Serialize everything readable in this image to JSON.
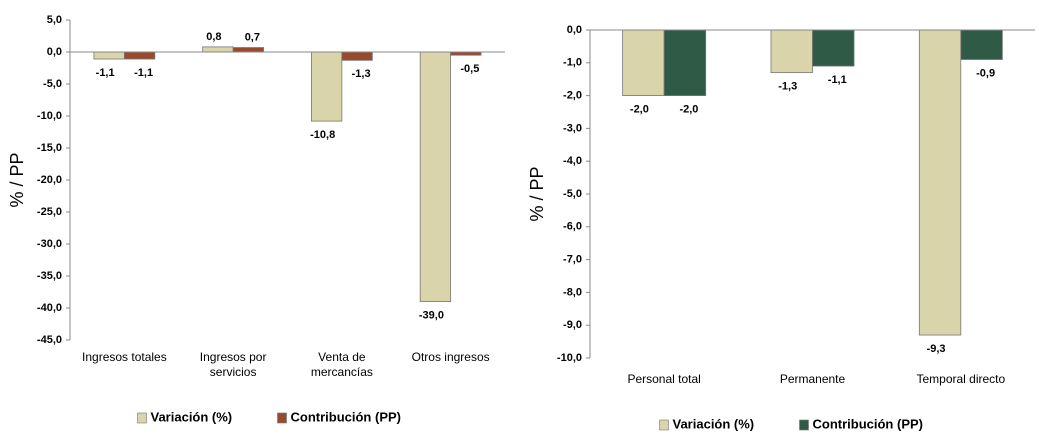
{
  "chart_data": [
    {
      "type": "bar",
      "y_label": "% / PP",
      "categories": [
        "Ingresos totales",
        "Ingresos por servicios",
        "Venta de mercancías",
        "Otros ingresos"
      ],
      "series": [
        {
          "name": "Variación (%)",
          "color": "#d9d4aa",
          "values": [
            -1.1,
            0.8,
            -10.8,
            -39.0
          ],
          "value_labels": [
            "-1,1",
            "0,8",
            "-10,8",
            "-39,0"
          ]
        },
        {
          "name": "Contribución (PP)",
          "color": "#9a4a2c",
          "values": [
            -1.1,
            0.7,
            -1.3,
            -0.5
          ],
          "value_labels": [
            "-1,1",
            "0,7",
            "-1,3",
            "-0,5"
          ]
        }
      ],
      "ylim": [
        -45,
        5
      ],
      "yticks": [
        {
          "value": 5,
          "label": "5,0"
        },
        {
          "value": 0,
          "label": "0,0"
        },
        {
          "value": -5,
          "label": "-5,0"
        },
        {
          "value": -10,
          "label": "-10,0"
        },
        {
          "value": -15,
          "label": "-15,0"
        },
        {
          "value": -20,
          "label": "-20,0"
        },
        {
          "value": -25,
          "label": "-25,0"
        },
        {
          "value": -30,
          "label": "-30,0"
        },
        {
          "value": -35,
          "label": "-35,0"
        },
        {
          "value": -40,
          "label": "-40,0"
        },
        {
          "value": -45,
          "label": "-45,0"
        }
      ],
      "grid": false
    },
    {
      "type": "bar",
      "y_label": "% / PP",
      "categories": [
        "Personal total",
        "Permanente",
        "Temporal directo"
      ],
      "series": [
        {
          "name": "Variación (%)",
          "color": "#d9d4aa",
          "values": [
            -2.0,
            -1.3,
            -9.3
          ],
          "value_labels": [
            "-2,0",
            "-1,3",
            "-9,3"
          ]
        },
        {
          "name": "Contribución (PP)",
          "color": "#2f5b46",
          "values": [
            -2.0,
            -1.1,
            -0.9
          ],
          "value_labels": [
            "-2,0",
            "-1,1",
            "-0,9"
          ]
        }
      ],
      "ylim": [
        -10,
        0
      ],
      "yticks": [
        {
          "value": 0,
          "label": "0,0"
        },
        {
          "value": -1,
          "label": "-1,0"
        },
        {
          "value": -2,
          "label": "-2,0"
        },
        {
          "value": -3,
          "label": "-3,0"
        },
        {
          "value": -4,
          "label": "-4,0"
        },
        {
          "value": -5,
          "label": "-5,0"
        },
        {
          "value": -6,
          "label": "-6,0"
        },
        {
          "value": -7,
          "label": "-7,0"
        },
        {
          "value": -8,
          "label": "-8,0"
        },
        {
          "value": -9,
          "label": "-9,0"
        },
        {
          "value": -10,
          "label": "-10,0"
        }
      ],
      "grid": false
    }
  ]
}
